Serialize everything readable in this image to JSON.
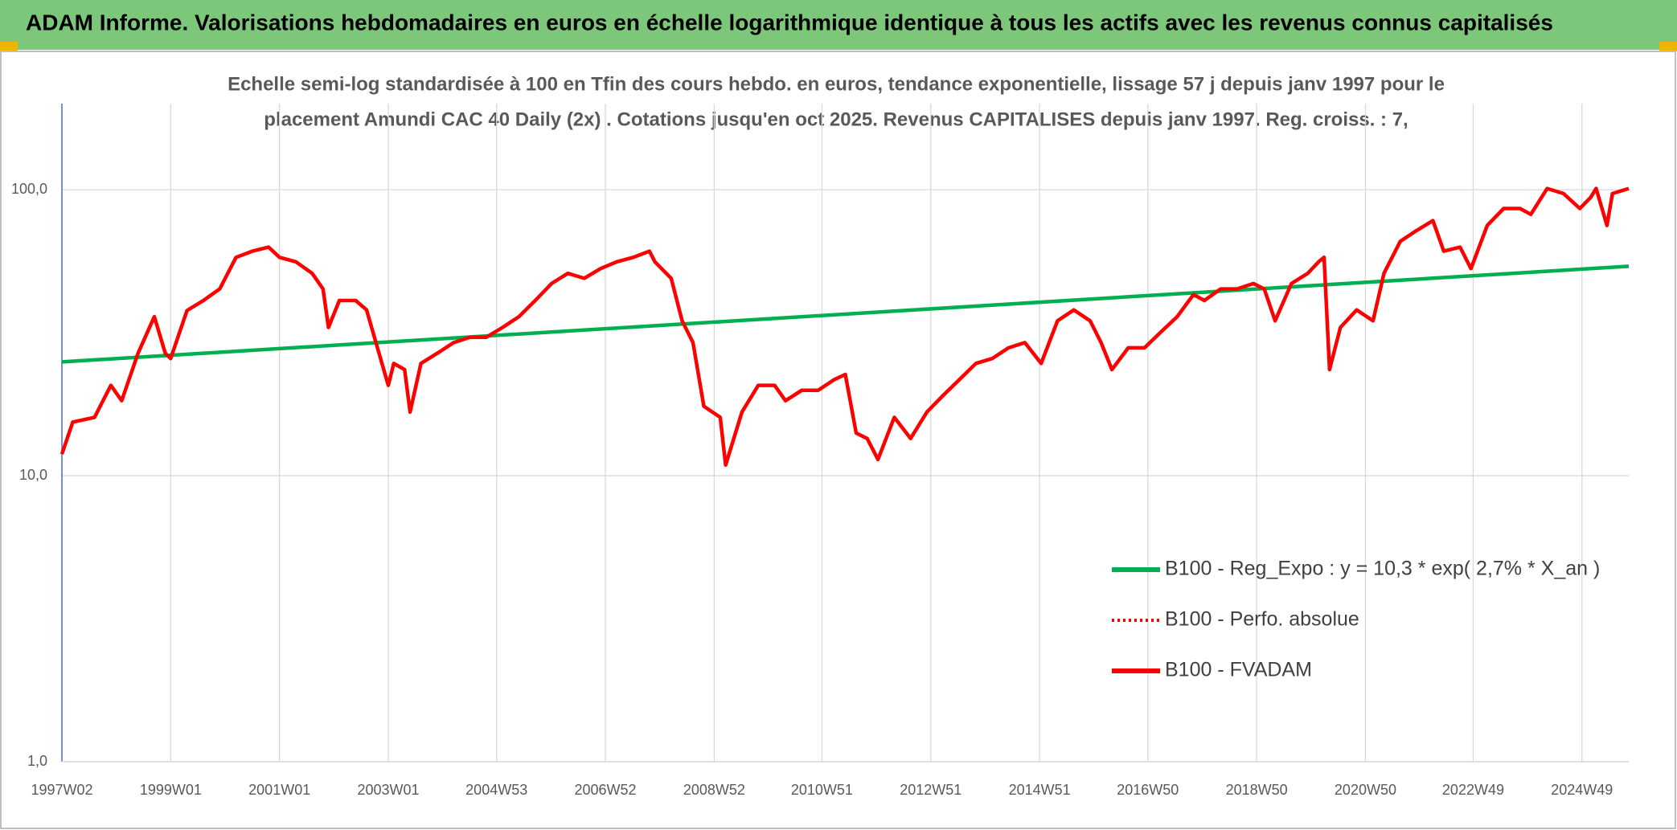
{
  "chart_data": {
    "type": "line",
    "title": "ADAM Informe. Valorisations hebdomadaires en euros en échelle logarithmique identique à tous les actifs avec les revenus connus capitalisés",
    "subtitle": [
      "Echelle semi-log standardisée à 100 en Tfin des cours hebdo. en euros, tendance exponentielle, lissage 57 j depuis janv 1997 pour le",
      "placement Amundi CAC 40 Daily (2x) . Cotations jusqu'en oct 2025. Revenus CAPITALISES depuis janv 1997. Reg. croiss. : 7,"
    ],
    "log_y": true,
    "grid": true,
    "legend_position": "lower-right",
    "xlim": [
      1997.0,
      2025.8
    ],
    "xticks": [
      {
        "value": 1997.0,
        "label": "1997W02"
      },
      {
        "value": 1999.0,
        "label": "1999W01"
      },
      {
        "value": 2001.0,
        "label": "2001W01"
      },
      {
        "value": 2003.0,
        "label": "2003W01"
      },
      {
        "value": 2004.99,
        "label": "2004W53"
      },
      {
        "value": 2006.99,
        "label": "2006W52"
      },
      {
        "value": 2008.99,
        "label": "2008W52"
      },
      {
        "value": 2010.97,
        "label": "2010W51"
      },
      {
        "value": 2012.97,
        "label": "2012W51"
      },
      {
        "value": 2014.97,
        "label": "2014W51"
      },
      {
        "value": 2016.96,
        "label": "2016W50"
      },
      {
        "value": 2018.96,
        "label": "2018W50"
      },
      {
        "value": 2020.96,
        "label": "2020W50"
      },
      {
        "value": 2022.94,
        "label": "2022W49"
      },
      {
        "value": 2024.94,
        "label": "2024W49"
      }
    ],
    "ylim": [
      1,
      200
    ],
    "yticks": [
      {
        "value": 1,
        "label": "1,0"
      },
      {
        "value": 10,
        "label": "10,0"
      },
      {
        "value": 100,
        "label": "100,0"
      }
    ],
    "x": [
      1997.0,
      1997.2,
      1997.6,
      1997.9,
      1998.1,
      1998.4,
      1998.7,
      1998.9,
      1999.0,
      1999.3,
      1999.6,
      1999.9,
      2000.2,
      2000.5,
      2000.8,
      2001.0,
      2001.3,
      2001.6,
      2001.8,
      2001.9,
      2002.1,
      2002.4,
      2002.6,
      2002.8,
      2003.0,
      2003.1,
      2003.3,
      2003.4,
      2003.6,
      2003.9,
      2004.2,
      2004.5,
      2004.8,
      2005.1,
      2005.4,
      2005.7,
      2006.0,
      2006.3,
      2006.6,
      2006.9,
      2007.2,
      2007.5,
      2007.8,
      2007.9,
      2008.2,
      2008.4,
      2008.6,
      2008.8,
      2009.1,
      2009.2,
      2009.5,
      2009.8,
      2010.1,
      2010.3,
      2010.6,
      2010.9,
      2011.2,
      2011.4,
      2011.6,
      2011.8,
      2012.0,
      2012.3,
      2012.6,
      2012.9,
      2013.2,
      2013.5,
      2013.8,
      2014.1,
      2014.4,
      2014.7,
      2015.0,
      2015.3,
      2015.6,
      2015.9,
      2016.1,
      2016.3,
      2016.6,
      2016.9,
      2017.2,
      2017.5,
      2017.8,
      2018.0,
      2018.3,
      2018.6,
      2018.9,
      2019.1,
      2019.3,
      2019.6,
      2019.9,
      2020.1,
      2020.2,
      2020.3,
      2020.5,
      2020.8,
      2021.1,
      2021.3,
      2021.6,
      2021.9,
      2022.2,
      2022.4,
      2022.7,
      2022.9,
      2023.2,
      2023.5,
      2023.8,
      2024.0,
      2024.3,
      2024.6,
      2024.9,
      2025.1,
      2025.2,
      2025.4,
      2025.5,
      2025.8
    ],
    "series": [
      {
        "name": "B100 - Reg_Expo : y = 10,3 * exp( 2,7% *  X_an )",
        "color": "#00b050",
        "dash": "solid",
        "x": [
          1997.0,
          2025.8
        ],
        "values": [
          25,
          54
        ]
      },
      {
        "name": "B100 - Perfo. absolue",
        "color": "#ff0000",
        "dash": "dotted",
        "values": [
          11.9,
          15.4,
          16,
          20.7,
          18.3,
          26.8,
          36,
          26.8,
          25.7,
          37.8,
          41,
          45,
          58,
          61,
          63,
          58,
          56,
          51,
          45,
          33,
          41,
          41,
          38,
          28,
          20.7,
          24.7,
          23.5,
          16.7,
          24.7,
          26.8,
          29.2,
          30.5,
          30.5,
          33,
          36,
          41,
          47,
          51,
          49,
          53,
          56,
          58,
          61,
          56,
          49,
          34.8,
          29.2,
          17.5,
          16,
          10.9,
          16.7,
          20.7,
          20.7,
          18.3,
          19.9,
          19.9,
          21.7,
          22.6,
          14.1,
          13.5,
          11.4,
          16,
          13.5,
          16.7,
          19.1,
          21.7,
          24.7,
          25.7,
          28,
          29.2,
          24.7,
          34.8,
          38,
          34.8,
          29.2,
          23.5,
          28,
          28,
          31.8,
          36,
          43,
          41,
          45,
          45,
          47,
          45,
          34.8,
          47,
          51,
          56,
          58,
          23.5,
          33,
          38,
          34.8,
          51,
          66,
          72,
          78,
          61,
          63,
          53,
          75,
          86,
          86,
          82,
          101,
          97,
          86,
          94,
          101,
          75,
          97,
          101
        ]
      },
      {
        "name": "B100 - FVADAM",
        "color": "#ff0000",
        "dash": "solid",
        "values": [
          11.9,
          15.4,
          16,
          20.7,
          18.3,
          26.8,
          36,
          26.8,
          25.7,
          37.8,
          41,
          45,
          58,
          61,
          63,
          58,
          56,
          51,
          45,
          33,
          41,
          41,
          38,
          28,
          20.7,
          24.7,
          23.5,
          16.7,
          24.7,
          26.8,
          29.2,
          30.5,
          30.5,
          33,
          36,
          41,
          47,
          51,
          49,
          53,
          56,
          58,
          61,
          56,
          49,
          34.8,
          29.2,
          17.5,
          16,
          10.9,
          16.7,
          20.7,
          20.7,
          18.3,
          19.9,
          19.9,
          21.7,
          22.6,
          14.1,
          13.5,
          11.4,
          16,
          13.5,
          16.7,
          19.1,
          21.7,
          24.7,
          25.7,
          28,
          29.2,
          24.7,
          34.8,
          38,
          34.8,
          29.2,
          23.5,
          28,
          28,
          31.8,
          36,
          43,
          41,
          45,
          45,
          47,
          45,
          34.8,
          47,
          51,
          56,
          58,
          23.5,
          33,
          38,
          34.8,
          51,
          66,
          72,
          78,
          61,
          63,
          53,
          75,
          86,
          86,
          82,
          101,
          97,
          86,
          94,
          101,
          75,
          97,
          101
        ]
      }
    ]
  }
}
